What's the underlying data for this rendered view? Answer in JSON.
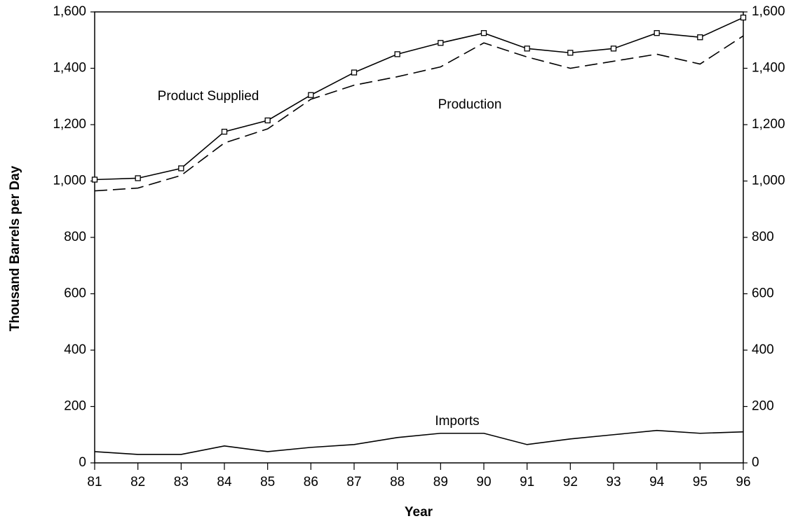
{
  "chart_data": {
    "type": "line",
    "xlabel": "Year",
    "ylabel": "Thousand Barrels per Day",
    "categories": [
      "81",
      "82",
      "83",
      "84",
      "85",
      "86",
      "87",
      "88",
      "89",
      "90",
      "91",
      "92",
      "93",
      "94",
      "95",
      "96"
    ],
    "series": [
      {
        "name": "Product Supplied",
        "color": "#000000",
        "style": "solid",
        "marker": "square",
        "values": [
          1005,
          1010,
          1045,
          1175,
          1215,
          1305,
          1385,
          1450,
          1490,
          1525,
          1470,
          1455,
          1470,
          1525,
          1510,
          1580
        ]
      },
      {
        "name": "Production",
        "color": "#000000",
        "style": "dashed",
        "values": [
          965,
          975,
          1020,
          1135,
          1185,
          1290,
          1340,
          1370,
          1405,
          1490,
          1440,
          1400,
          1425,
          1450,
          1415,
          1515
        ]
      },
      {
        "name": "Imports",
        "color": "#000000",
        "style": "solid",
        "values": [
          40,
          30,
          30,
          60,
          40,
          55,
          65,
          90,
          105,
          105,
          65,
          85,
          100,
          115,
          105,
          110
        ]
      }
    ],
    "ylim": [
      0,
      1600
    ],
    "yticks": [
      0,
      200,
      400,
      600,
      800,
      {
        "value": 1000,
        "label": "1,000"
      },
      {
        "value": 1200,
        "label": "1,200"
      },
      {
        "value": 1400,
        "label": "1,400"
      },
      {
        "value": 1600,
        "label": "1,600"
      }
    ],
    "right_axis_labels": true
  }
}
